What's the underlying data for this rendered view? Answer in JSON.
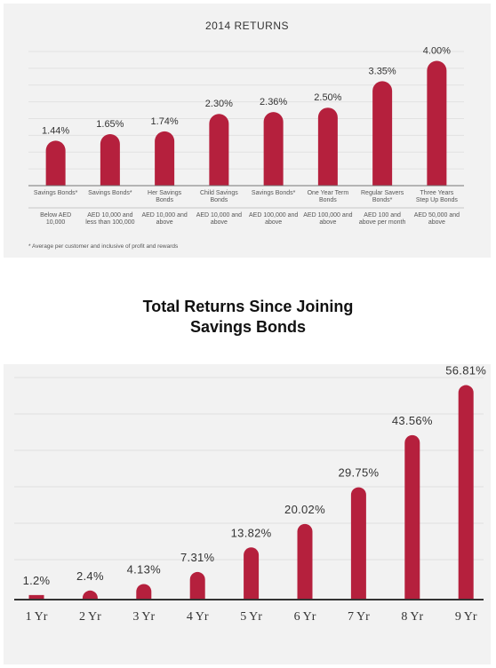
{
  "chart_data": [
    {
      "type": "bar",
      "title": "2014 RETURNS",
      "categories": [
        [
          "Savings Bonds*"
        ],
        [
          "Savings Bonds*"
        ],
        [
          "Her Savings",
          "Bonds"
        ],
        [
          "Child Savings",
          "Bonds"
        ],
        [
          "Savings Bonds*"
        ],
        [
          "One Year Term",
          "Bonds"
        ],
        [
          "Regular Savers",
          "Bonds*"
        ],
        [
          "Three Years",
          "Step Up Bonds"
        ]
      ],
      "sub_categories": [
        [
          "Below AED",
          "10,000"
        ],
        [
          "AED 10,000 and",
          "less than 100,000"
        ],
        [
          "AED 10,000 and",
          "above"
        ],
        [
          "AED 10,000 and",
          "above"
        ],
        [
          "AED 100,000 and",
          "above"
        ],
        [
          "AED 100,000 and",
          "above"
        ],
        [
          "AED 100 and",
          "above per month"
        ],
        [
          "AED 50,000 and",
          "above"
        ]
      ],
      "values": [
        1.44,
        1.65,
        1.74,
        2.3,
        2.36,
        2.5,
        3.35,
        4.0
      ],
      "value_labels": [
        "1.44%",
        "1.65%",
        "1.74%",
        "2.30%",
        "2.36%",
        "2.50%",
        "3.35%",
        "4.00%"
      ],
      "ylim": [
        0,
        4.3
      ],
      "grid": true,
      "bar_color": "#b5203d",
      "footnote": "* Average per customer and inclusive of profit and rewards"
    },
    {
      "type": "bar",
      "title": "",
      "categories": [
        "1 Yr",
        "2 Yr",
        "3 Yr",
        "4 Yr",
        "5 Yr",
        "6 Yr",
        "7 Yr",
        "8 Yr",
        "9 Yr"
      ],
      "values": [
        1.2,
        2.4,
        4.13,
        7.31,
        13.82,
        20.02,
        29.75,
        43.56,
        56.81
      ],
      "value_labels": [
        "1.2%",
        "2.4%",
        "4.13%",
        "7.31%",
        "13.82%",
        "20.02%",
        "29.75%",
        "43.56%",
        "56.81%"
      ],
      "ylim": [
        0,
        60
      ],
      "grid": true,
      "bar_color": "#b5203d"
    }
  ],
  "heading": {
    "line1": "Total Returns Since Joining",
    "line2": "Savings Bonds"
  }
}
